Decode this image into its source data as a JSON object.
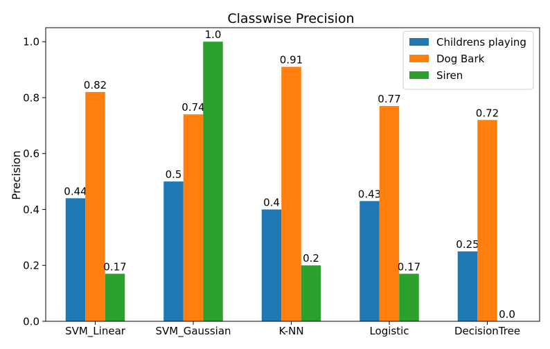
{
  "chart_data": {
    "type": "bar",
    "title": "Classwise Precision",
    "xlabel": "",
    "ylabel": "Precision",
    "categories": [
      "SVM_Linear",
      "SVM_Gaussian",
      "K-NN",
      "Logistic",
      "DecisionTree"
    ],
    "series": [
      {
        "name": "Childrens playing",
        "color": "#1f77b4",
        "values": [
          0.44,
          0.5,
          0.4,
          0.43,
          0.25
        ],
        "labels": [
          "0.44",
          "0.5",
          "0.4",
          "0.43",
          "0.25"
        ]
      },
      {
        "name": "Dog Bark",
        "color": "#ff7f0e",
        "values": [
          0.82,
          0.74,
          0.91,
          0.77,
          0.72
        ],
        "labels": [
          "0.82",
          "0.74",
          "0.91",
          "0.77",
          "0.72"
        ]
      },
      {
        "name": "Siren",
        "color": "#2ca02c",
        "values": [
          0.17,
          1.0,
          0.2,
          0.17,
          0.0
        ],
        "labels": [
          "0.17",
          "1.0",
          "0.2",
          "0.17",
          "0.0"
        ]
      }
    ],
    "yticks": [
      "0.0",
      "0.2",
      "0.4",
      "0.6",
      "0.8",
      "1.0"
    ],
    "ylim": [
      0,
      1.05
    ],
    "grid": false,
    "legend_position": "top-right"
  }
}
